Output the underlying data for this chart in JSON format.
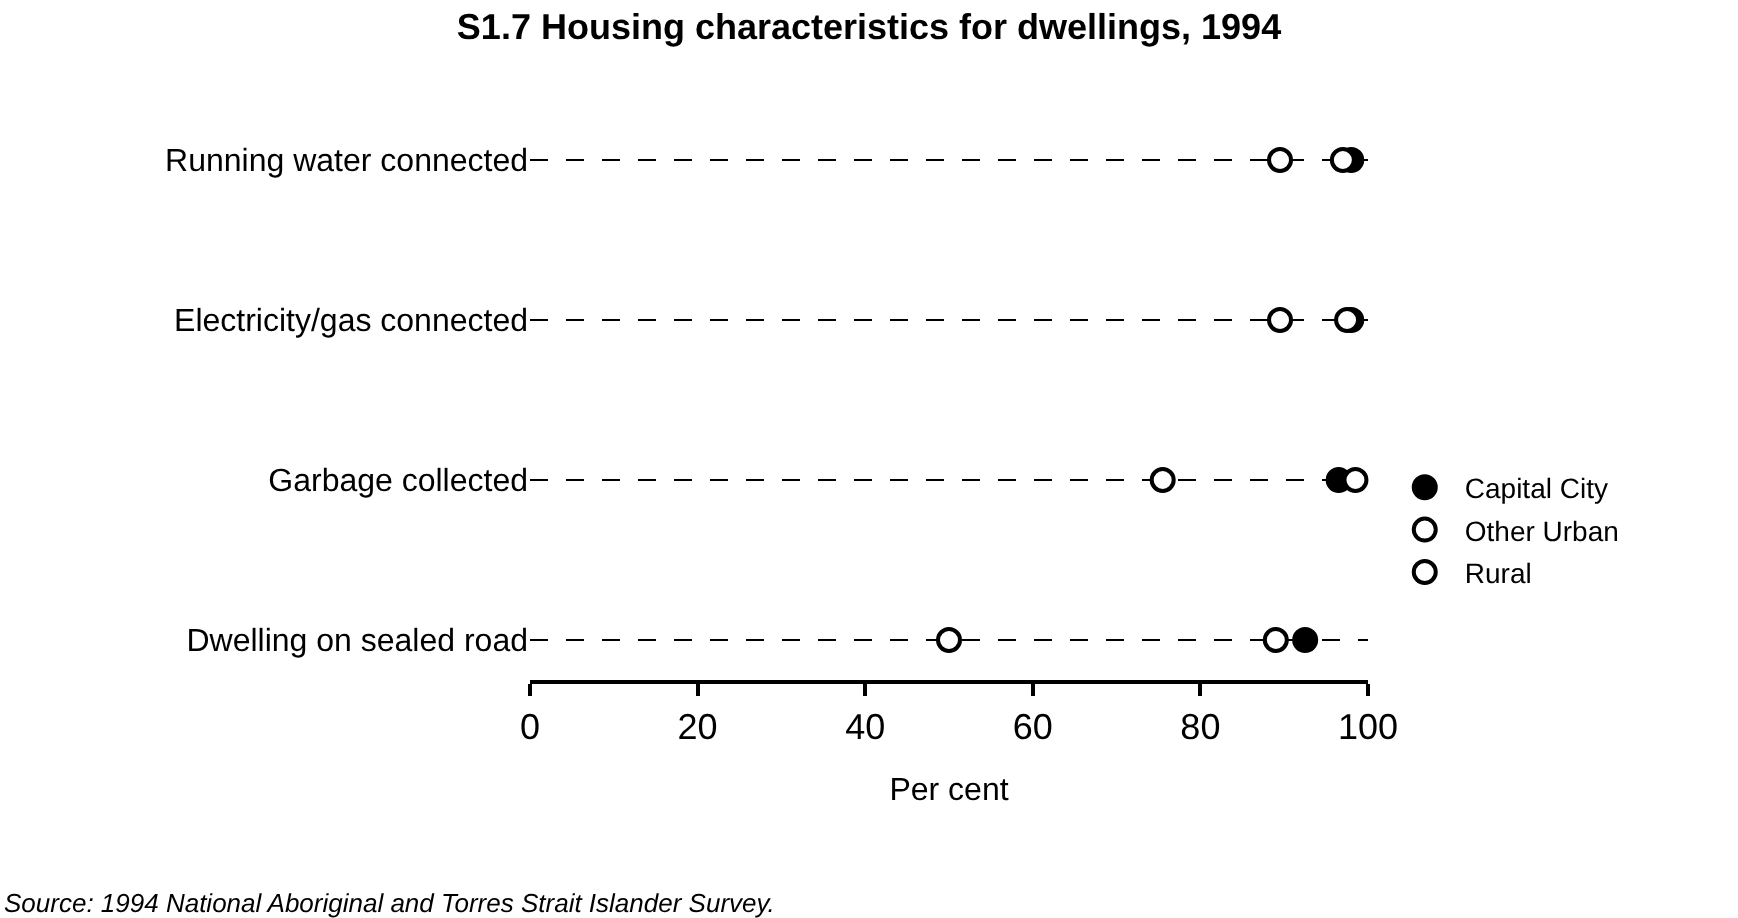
{
  "chart_data": {
    "type": "scatter",
    "orientation": "horizontal",
    "title": "S1.7 Housing characteristics for dwellings, 1994",
    "categories": [
      "Running water connected",
      "Electricity/gas connected",
      "Garbage collected",
      "Dwelling on sealed road"
    ],
    "series": [
      {
        "name": "Capital City",
        "color": "#000000",
        "values": [
          98,
          98,
          96.5,
          92.5
        ]
      },
      {
        "name": "Other Urban",
        "color": "#ffffff",
        "values": [
          97,
          97.5,
          98.5,
          89
        ]
      },
      {
        "name": "Rural",
        "color": "#ffffff",
        "values": [
          89.5,
          89.5,
          75.5,
          50
        ]
      }
    ],
    "xlabel": "Per cent",
    "xlim": [
      0,
      100
    ],
    "xticks": [
      0,
      20,
      40,
      60,
      80,
      100
    ],
    "grid": "y",
    "line_style": "dashed",
    "marker": "circle",
    "legend": "right",
    "annotations": [
      "Source: 1994 National Aboriginal and Torres Strait Islander Survey."
    ]
  }
}
